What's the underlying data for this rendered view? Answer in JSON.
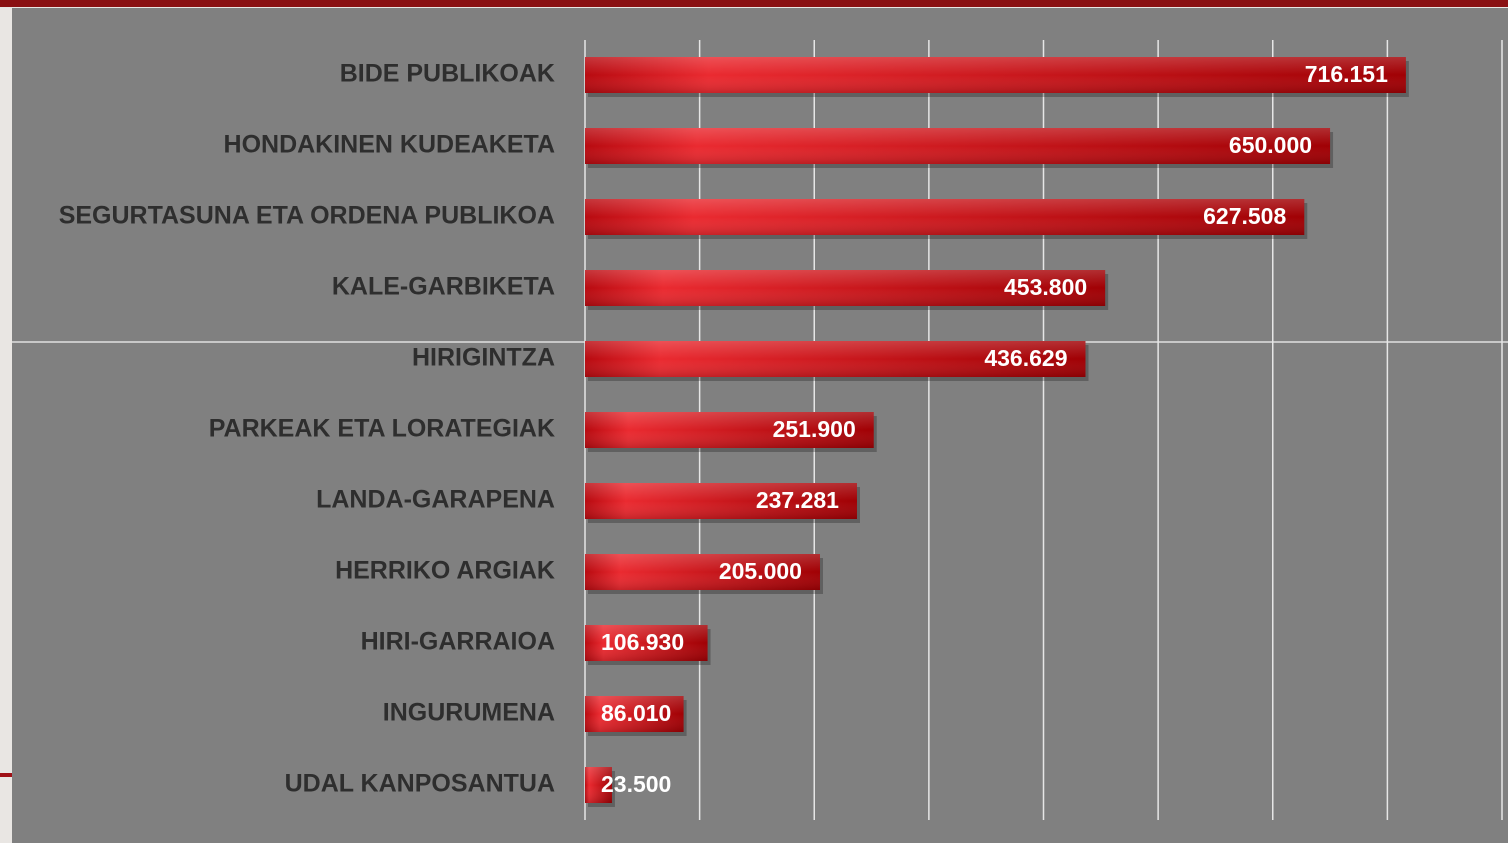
{
  "chart_data": {
    "type": "bar",
    "orientation": "horizontal",
    "categories": [
      "BIDE PUBLIKOAK",
      "HONDAKINEN KUDEAKETA",
      "SEGURTASUNA ETA ORDENA PUBLIKOA",
      "KALE-GARBIKETA",
      "HIRIGINTZA",
      "PARKEAK ETA LORATEGIAK",
      "LANDA-GARAPENA",
      "HERRIKO ARGIAK",
      "HIRI-GARRAIOA",
      "INGURUMENA",
      "UDAL KANPOSANTUA"
    ],
    "values": [
      716151,
      650000,
      627508,
      453800,
      436629,
      251900,
      237281,
      205000,
      106930,
      86010,
      23500
    ],
    "value_labels": [
      "716.151",
      "650.000",
      "627.508",
      "453.800",
      "436.629",
      "251.900",
      "237.281",
      "205.000",
      "106.930",
      "86.010",
      "23.500"
    ],
    "color": "#d41a20",
    "xlim": [
      0,
      800000
    ],
    "xticks": [
      0,
      100000,
      200000,
      300000,
      400000,
      500000,
      600000,
      700000,
      800000
    ],
    "grid": true
  }
}
